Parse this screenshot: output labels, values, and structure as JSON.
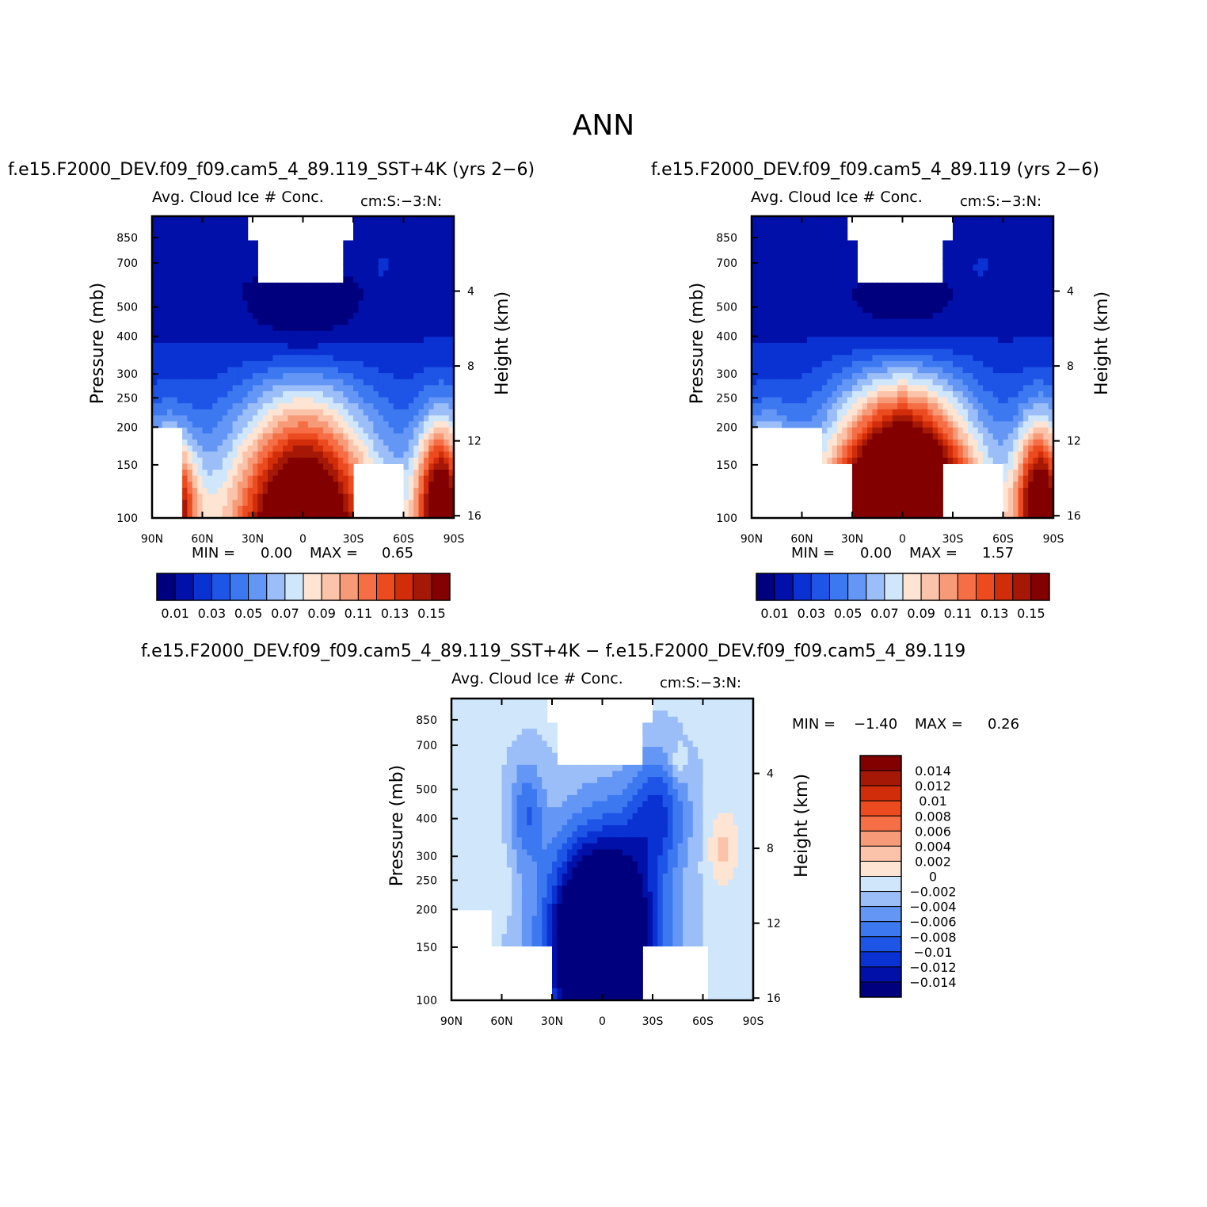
{
  "main_title": "ANN",
  "colors": {
    "abs_levels": [
      "#00007f",
      "#0010a8",
      "#0a32d2",
      "#1e55e6",
      "#3c78f0",
      "#6496f5",
      "#9bbef8",
      "#d0e6fb",
      "#fee4d2",
      "#fbc3aa",
      "#f79a78",
      "#f56e46",
      "#eb4b1e",
      "#d22d0a",
      "#a51806",
      "#820000"
    ],
    "diff_levels": [
      "#00007f",
      "#0010a8",
      "#0a32d2",
      "#1e55e6",
      "#3c78f0",
      "#6496f5",
      "#9bbef8",
      "#d0e6fb",
      "#fee4d2",
      "#fbc3aa",
      "#f79a78",
      "#f56e46",
      "#eb4b1e",
      "#d22d0a",
      "#a51806",
      "#820000"
    ]
  },
  "panels": [
    {
      "id": "sst4k",
      "case_title": "f.e15.F2000_DEV.f09_f09.cam5_4_89.119_SST+4K (yrs 2−6)",
      "var_title": "Avg. Cloud Ice # Conc.",
      "units": "cm:S:−3:N:",
      "min_label": "MIN =",
      "min_value": "0.00",
      "max_label": "MAX =",
      "max_value": "0.65",
      "ylabel": "Pressure (mb)",
      "y2label": "Height (km)",
      "pressure_ticks": [
        "100",
        "150",
        "200",
        "250",
        "300",
        "400",
        "500",
        "700",
        "850"
      ],
      "height_ticks": [
        "16",
        "12",
        "8",
        "4"
      ],
      "lat_ticks": [
        "90N",
        "60N",
        "30N",
        "0",
        "30S",
        "60S",
        "90S"
      ],
      "colorbar_labels": [
        "0.01",
        "0.03",
        "0.05",
        "0.07",
        "0.09",
        "0.11",
        "0.13",
        "0.15"
      ]
    },
    {
      "id": "ctrl",
      "case_title": "f.e15.F2000_DEV.f09_f09.cam5_4_89.119 (yrs 2−6)",
      "var_title": "Avg. Cloud Ice # Conc.",
      "units": "cm:S:−3:N:",
      "min_label": "MIN =",
      "min_value": "0.00",
      "max_label": "MAX =",
      "max_value": "1.57",
      "ylabel": "Pressure (mb)",
      "y2label": "Height (km)",
      "pressure_ticks": [
        "100",
        "150",
        "200",
        "250",
        "300",
        "400",
        "500",
        "700",
        "850"
      ],
      "height_ticks": [
        "16",
        "12",
        "8",
        "4"
      ],
      "lat_ticks": [
        "90N",
        "60N",
        "30N",
        "0",
        "30S",
        "60S",
        "90S"
      ],
      "colorbar_labels": [
        "0.01",
        "0.03",
        "0.05",
        "0.07",
        "0.09",
        "0.11",
        "0.13",
        "0.15"
      ]
    },
    {
      "id": "diff",
      "case_title": "f.e15.F2000_DEV.f09_f09.cam5_4_89.119_SST+4K − f.e15.F2000_DEV.f09_f09.cam5_4_89.119",
      "var_title": "Avg. Cloud Ice # Conc.",
      "units": "cm:S:−3:N:",
      "min_label": "MIN =",
      "min_value": "−1.40",
      "max_label": "MAX =",
      "max_value": "0.26",
      "ylabel": "Pressure (mb)",
      "y2label": "Height (km)",
      "pressure_ticks": [
        "100",
        "150",
        "200",
        "250",
        "300",
        "400",
        "500",
        "700",
        "850"
      ],
      "height_ticks": [
        "16",
        "12",
        "8",
        "4"
      ],
      "lat_ticks": [
        "90N",
        "60N",
        "30N",
        "0",
        "30S",
        "60S",
        "90S"
      ],
      "colorbar_labels": [
        "0.014",
        "0.012",
        "0.01",
        "0.008",
        "0.006",
        "0.004",
        "0.002",
        "0",
        "−0.002",
        "−0.004",
        "−0.006",
        "−0.008",
        "−0.01",
        "−0.012",
        "−0.014"
      ]
    }
  ],
  "chart_data": [
    {
      "type": "heatmap",
      "title": "f.e15.F2000_DEV.f09_f09.cam5_4_89.119_SST+4K (yrs 2−6)",
      "subtitle": "Avg. Cloud Ice # Conc.",
      "units": "cm:S:−3:N:",
      "xlabel": "",
      "ylabel": "Pressure (mb)",
      "y2label": "Height (km)",
      "x_ticks": [
        "90N",
        "60N",
        "30N",
        "0",
        "30S",
        "60S",
        "90S"
      ],
      "y_ticks": [
        100,
        150,
        200,
        250,
        300,
        400,
        500,
        700,
        850
      ],
      "y2_ticks": [
        16,
        12,
        8,
        4
      ],
      "ylim": [
        1000,
        100
      ],
      "y_scale": "log",
      "levels": [
        0.01,
        0.02,
        0.03,
        0.04,
        0.05,
        0.06,
        0.07,
        0.08,
        0.09,
        0.1,
        0.11,
        0.12,
        0.13,
        0.14,
        0.15
      ],
      "min": 0.0,
      "max": 0.65
    },
    {
      "type": "heatmap",
      "title": "f.e15.F2000_DEV.f09_f09.cam5_4_89.119 (yrs 2−6)",
      "subtitle": "Avg. Cloud Ice # Conc.",
      "units": "cm:S:−3:N:",
      "xlabel": "",
      "ylabel": "Pressure (mb)",
      "y2label": "Height (km)",
      "x_ticks": [
        "90N",
        "60N",
        "30N",
        "0",
        "30S",
        "60S",
        "90S"
      ],
      "y_ticks": [
        100,
        150,
        200,
        250,
        300,
        400,
        500,
        700,
        850
      ],
      "y2_ticks": [
        16,
        12,
        8,
        4
      ],
      "ylim": [
        1000,
        100
      ],
      "y_scale": "log",
      "levels": [
        0.01,
        0.02,
        0.03,
        0.04,
        0.05,
        0.06,
        0.07,
        0.08,
        0.09,
        0.1,
        0.11,
        0.12,
        0.13,
        0.14,
        0.15
      ],
      "min": 0.0,
      "max": 1.57
    },
    {
      "type": "heatmap",
      "title": "f.e15.F2000_DEV.f09_f09.cam5_4_89.119_SST+4K − f.e15.F2000_DEV.f09_f09.cam5_4_89.119",
      "subtitle": "Avg. Cloud Ice # Conc.",
      "units": "cm:S:−3:N:",
      "xlabel": "",
      "ylabel": "Pressure (mb)",
      "y2label": "Height (km)",
      "x_ticks": [
        "90N",
        "60N",
        "30N",
        "0",
        "30S",
        "60S",
        "90S"
      ],
      "y_ticks": [
        100,
        150,
        200,
        250,
        300,
        400,
        500,
        700,
        850
      ],
      "y2_ticks": [
        16,
        12,
        8,
        4
      ],
      "ylim": [
        1000,
        100
      ],
      "y_scale": "log",
      "levels": [
        -0.014,
        -0.012,
        -0.01,
        -0.008,
        -0.006,
        -0.004,
        -0.002,
        0,
        0.002,
        0.004,
        0.006,
        0.008,
        0.01,
        0.012,
        0.014
      ],
      "min": -1.4,
      "max": 0.26
    }
  ]
}
